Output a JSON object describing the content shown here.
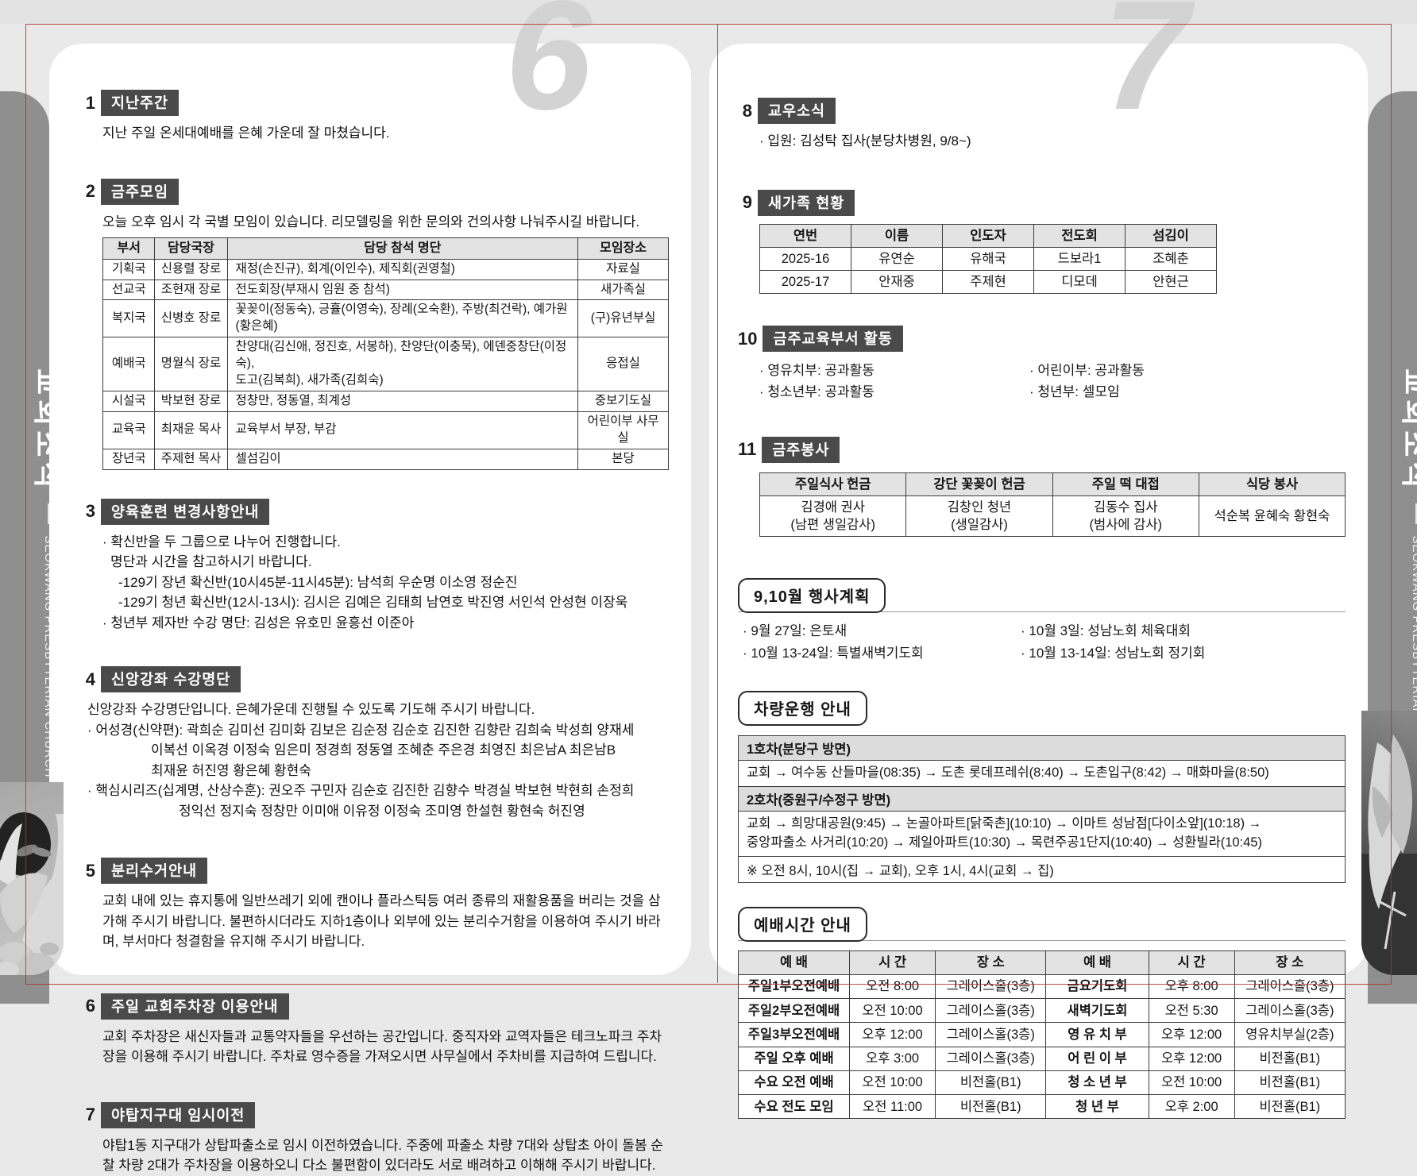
{
  "sidebar": {
    "title": "교회소식",
    "subtitle": "SEOKWANG PRESBYTERIAN CHURCH"
  },
  "left": {
    "page_number": "6",
    "s1": {
      "num": "1",
      "title": "지난주간",
      "body": "지난 주일 온세대예배를 은혜 가운데 잘 마쳤습니다."
    },
    "s2": {
      "num": "2",
      "title": "금주모임",
      "body": "오늘 오후 임시 각 국별 모임이 있습니다. 리모델링을 위한 문의와 건의사항 나눠주시길 바랍니다.",
      "table": {
        "headers": [
          "부서",
          "담당국장",
          "담당 참석 명단",
          "모임장소"
        ],
        "rows": [
          [
            "기획국",
            "신용렬 장로",
            "재정(손진규), 회계(이인수), 제직회(권영철)",
            "자료실"
          ],
          [
            "선교국",
            "조현재 장로",
            "전도회장(부재시 임원 중 참석)",
            "새가족실"
          ],
          [
            "복지국",
            "신병호 장로",
            "꽃꽂이(정동숙), 긍휼(이영숙), 장례(오숙환), 주방(최건락), 예가원(황은혜)",
            "(구)유년부실"
          ],
          [
            "예배국",
            "명월식 장로",
            "찬양대(김신애, 정진호, 서봉하), 찬양단(이충묵), 에덴중창단(이정숙),\n도고(김복희), 새가족(김희숙)",
            "응접실"
          ],
          [
            "시설국",
            "박보현 장로",
            "정창만, 정동열, 최계성",
            "중보기도실"
          ],
          [
            "교육국",
            "최재윤 목사",
            "교육부서 부장, 부감",
            "어린이부 사무실"
          ],
          [
            "장년국",
            "주제현 목사",
            "셀섬김이",
            "본당"
          ]
        ]
      }
    },
    "s3": {
      "num": "3",
      "title": "양육훈련 변경사항안내",
      "line1": "· 확신반을 두 그룹으로 나누어 진행합니다.",
      "line2": "명단과 시간을 참고하시기 바랍니다.",
      "line3": "-129기 장년 확신반(10시45분-11시45분): 남석희 우순명 이소영 정순진",
      "line4": "-129기 청년 확신반(12시-13시): 김시은 김예은 김태희 남연호 박진영 서인석 안성현 이장욱",
      "line5": "· 청년부 제자반 수강 명단: 김성은 유호민 윤흥선 이준아"
    },
    "s4": {
      "num": "4",
      "title": "신앙강좌 수강명단",
      "intro": "신앙강좌 수강명단입니다. 은혜가운데 진행될 수 있도록 기도해 주시기 바랍니다.",
      "line1": "· 어성경(신약편): 곽희순 김미선 김미화 김보은 김순정 김순호 김진한 김향란 김희숙 박성희 양재세",
      "line2": "이복선 이옥경 이정숙 임은미 정경희 정동열 조혜춘 주은경 최영진 최은남A 최은남B",
      "line3": "최재윤 허진영 황은혜 황현숙",
      "line4": "· 핵심시리즈(십계명, 산상수훈): 권오주 구민자 김순호 김진한 김향수 박경실 박보현 박현희 손정희",
      "line5": "정익선 정지숙 정창만 이미애 이유정 이정숙 조미영 한설현 황현숙 허진영"
    },
    "s5": {
      "num": "5",
      "title": "분리수거안내",
      "body": "교회 내에 있는 휴지통에 일반쓰레기 외에 캔이나 플라스틱등 여러 종류의 재활용품을 버리는 것을 삼가해 주시기 바랍니다. 불편하시더라도 지하1층이나 외부에 있는 분리수거함을 이용하여 주시기 바라며, 부서마다 청결함을 유지해 주시기 바랍니다."
    },
    "s6": {
      "num": "6",
      "title": "주일 교회주차장 이용안내",
      "body": "교회 주차장은 새신자들과 교통약자들을 우선하는 공간입니다. 중직자와 교역자들은 테크노파크 주차장을 이용해 주시기 바랍니다. 주차료 영수증을 가져오시면 사무실에서 주차비를 지급하여 드립니다."
    },
    "s7": {
      "num": "7",
      "title": "야탑지구대 임시이전",
      "body": "야탑1동 지구대가 상탑파출소로 임시 이전하였습니다. 주중에 파출소 차량 7대와 상탑초 아이 돌봄 순찰 차량 2대가 주차장을 이용하오니 다소 불편함이 있더라도 서로 배려하고 이해해 주시기 바랍니다."
    }
  },
  "right": {
    "page_number": "7",
    "s8": {
      "num": "8",
      "title": "교우소식",
      "line1": "· 입원: 김성탁 집사(분당차병원, 9/8~)"
    },
    "s9": {
      "num": "9",
      "title": "새가족 현황",
      "table": {
        "headers": [
          "연번",
          "이름",
          "인도자",
          "전도회",
          "섬김이"
        ],
        "rows": [
          [
            "2025-16",
            "유연순",
            "유해국",
            "드보라1",
            "조혜춘"
          ],
          [
            "2025-17",
            "안재중",
            "주제현",
            "디모데",
            "안현근"
          ]
        ]
      }
    },
    "s10": {
      "num": "10",
      "title": "금주교육부서 활동",
      "col1": [
        "· 영유치부: 공과활동",
        "· 청소년부: 공과활동"
      ],
      "col2": [
        "· 어린이부: 공과활동",
        "· 청년부: 셀모임"
      ]
    },
    "s11": {
      "num": "11",
      "title": "금주봉사",
      "table": {
        "headers": [
          "주일식사 헌금",
          "강단 꽃꽂이 헌금",
          "주일 떡 대접",
          "식당 봉사"
        ],
        "rows": [
          [
            "김경애 권사\n(남편 생일감사)",
            "김창인 청년\n(생일감사)",
            "김동수 집사\n(범사에 감사)",
            "석순복 윤혜숙 황현숙"
          ]
        ]
      }
    },
    "events": {
      "box_title": "9,10월 행사계획",
      "col1": [
        "· 9월 27일: 은토새",
        "· 10월 13-24일: 특별새벽기도회"
      ],
      "col2": [
        "· 10월 3일: 성남노회 체육대회",
        "· 10월 13-14일: 성남노회 정기회"
      ]
    },
    "shuttle": {
      "box_title": "차량운행 안내",
      "bus1_label": "1호차(분당구 방면)",
      "bus1_route": "교회 → 여수동 산들마을(08:35) → 도촌 롯데프레쉬(8:40) → 도촌입구(8:42) → 매화마을(8:50)",
      "bus2_label": "2호차(중원구/수정구 방면)",
      "bus2_route": "교회 → 희망대공원(9:45) → 논골아파트[닭죽촌](10:10) →  이마트 성남점[다이소앞](10:18) →\n중앙파출소 사거리(10:20) → 제일아파트(10:30) → 목련주공1단지(10:40) → 성환빌라(10:45)",
      "note": "※ 오전 8시, 10시(집 → 교회),   오후 1시, 4시(교회 → 집)"
    },
    "worship": {
      "box_title": "예배시간 안내",
      "table": {
        "headers": [
          "예 배",
          "시 간",
          "장 소",
          "예 배",
          "시 간",
          "장 소"
        ],
        "rows": [
          [
            "주일1부오전예배",
            "오전  8:00",
            "그레이스홀(3층)",
            "금요기도회",
            "오후  8:00",
            "그레이스홀(3층)"
          ],
          [
            "주일2부오전예배",
            "오전 10:00",
            "그레이스홀(3층)",
            "새벽기도회",
            "오전  5:30",
            "그레이스홀(3층)"
          ],
          [
            "주일3부오전예배",
            "오후 12:00",
            "그레이스홀(3층)",
            "영 유 치 부",
            "오후 12:00",
            "영유치부실(2층)"
          ],
          [
            "주일 오후 예배",
            "오후  3:00",
            "그레이스홀(3층)",
            "어 린 이 부",
            "오후 12:00",
            "비전홀(B1)"
          ],
          [
            "수요 오전 예배",
            "오전 10:00",
            "비전홀(B1)",
            "청 소 년 부",
            "오전 10:00",
            "비전홀(B1)"
          ],
          [
            "수요 전도 모임",
            "오전 11:00",
            "비전홀(B1)",
            "청  년  부",
            "오후  2:00",
            "비전홀(B1)"
          ]
        ]
      }
    }
  }
}
